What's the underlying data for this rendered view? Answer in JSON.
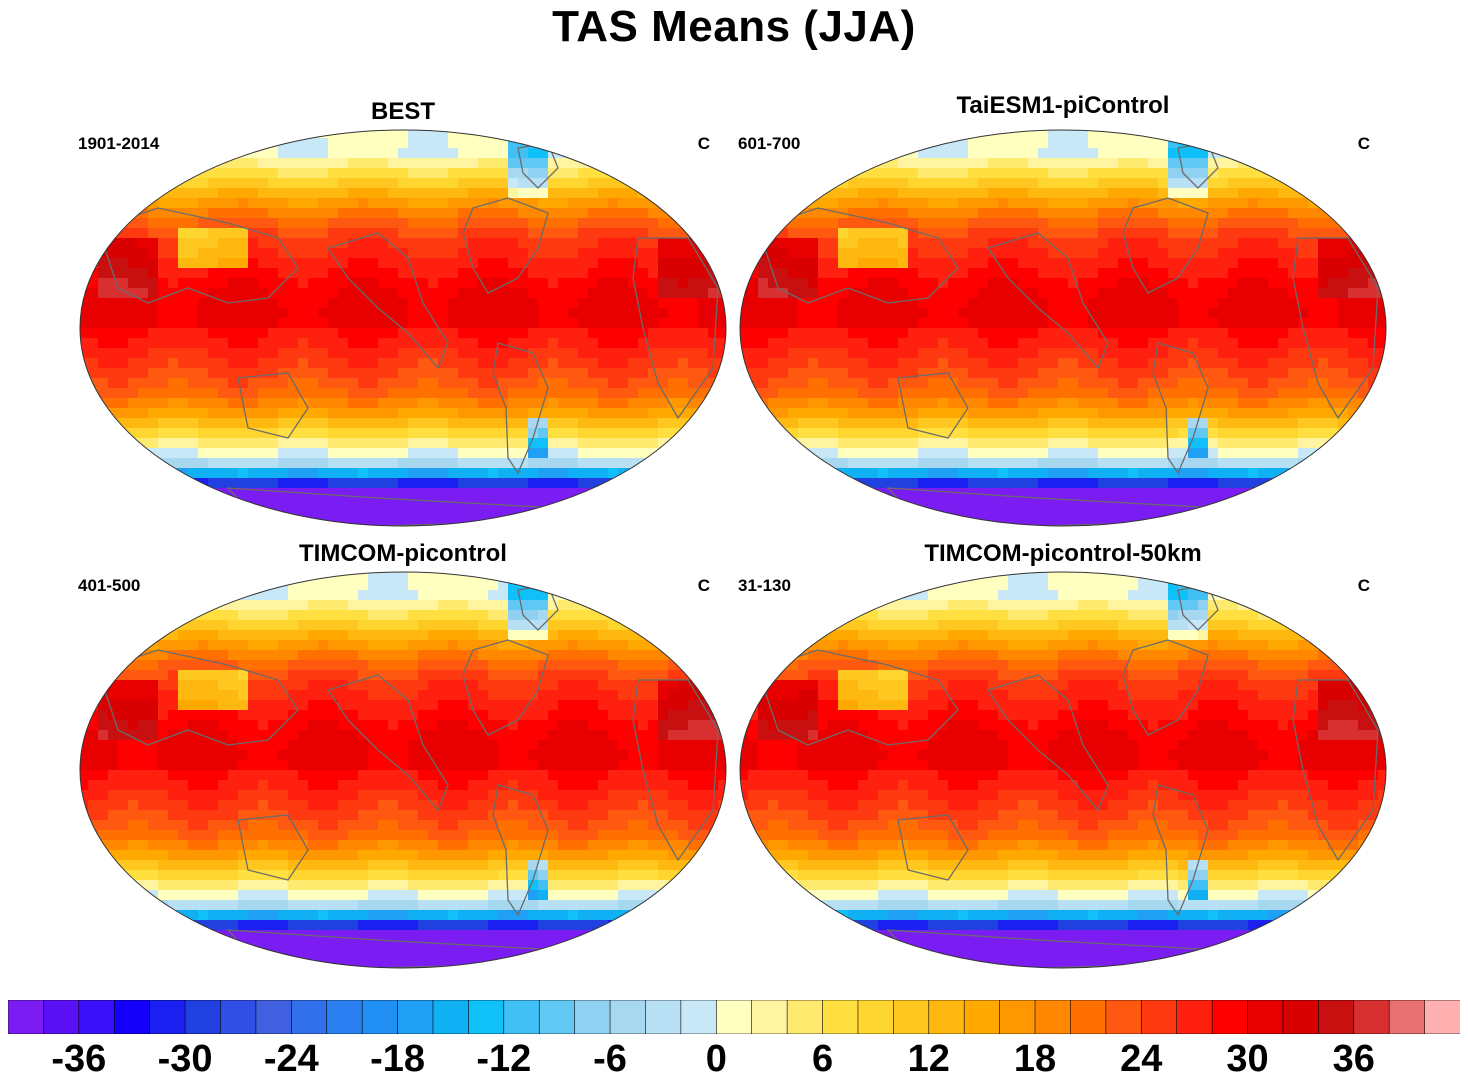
{
  "title": "TAS Means (JJA)",
  "units": "C",
  "panels": [
    {
      "name": "BEST",
      "period": "1901-2014"
    },
    {
      "name": "TaiESM1-piControl",
      "period": "601-700"
    },
    {
      "name": "TIMCOM-picontrol",
      "period": "401-500"
    },
    {
      "name": "TIMCOM-picontrol-50km",
      "period": "31-130"
    }
  ],
  "colorbar": {
    "levels": [
      -40,
      -38,
      -36,
      -34,
      -32,
      -30,
      -28,
      -26,
      -24,
      -22,
      -20,
      -18,
      -16,
      -14,
      -12,
      -10,
      -8,
      -6,
      -4,
      -2,
      0,
      2,
      4,
      6,
      8,
      10,
      12,
      14,
      16,
      18,
      20,
      22,
      24,
      26,
      28,
      30,
      32,
      34,
      36,
      38,
      40,
      42
    ],
    "tick_labels": [
      "-36",
      "-30",
      "-24",
      "-18",
      "-12",
      "-6",
      "0",
      "6",
      "12",
      "18",
      "24",
      "30",
      "36"
    ],
    "colors": [
      "#7a1cf2",
      "#5a10f5",
      "#3a10f8",
      "#1400fa",
      "#1a20f0",
      "#2040e0",
      "#3050e5",
      "#4060e0",
      "#3070ea",
      "#2a80f0",
      "#2090f5",
      "#20a0f5",
      "#10b0f5",
      "#10c0f8",
      "#40c0f5",
      "#60c8f2",
      "#90d0f0",
      "#a8d8f0",
      "#b8e0f4",
      "#c8e8f8",
      "#ffffc0",
      "#fff5a0",
      "#ffea70",
      "#ffe040",
      "#ffd530",
      "#ffc820",
      "#ffb810",
      "#ffa800",
      "#ff9800",
      "#ff8800",
      "#ff7000",
      "#ff5810",
      "#ff3a10",
      "#ff2010",
      "#ff0000",
      "#e80000",
      "#d80000",
      "#c81010",
      "#d83030",
      "#e87070",
      "#ffb0b0"
    ]
  }
}
